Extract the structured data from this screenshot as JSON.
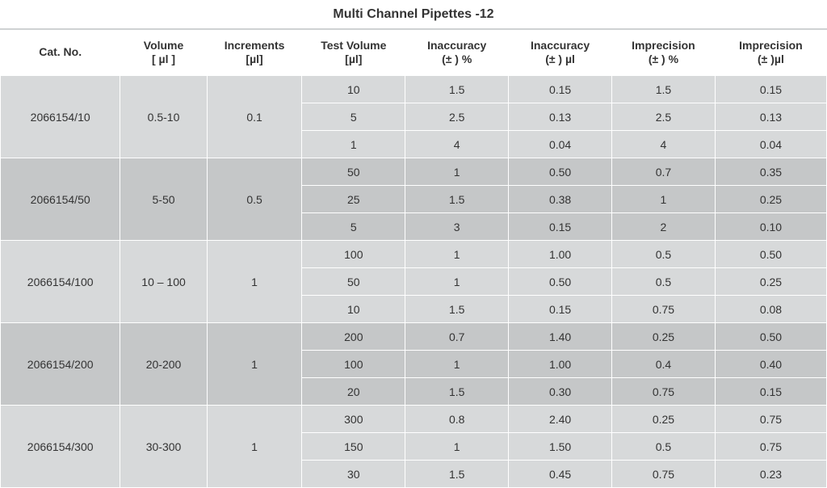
{
  "title": "Multi Channel Pipettes -12",
  "columns": [
    "Cat. No.",
    "Volume\n[ µl ]",
    "Increments\n[µl]",
    "Test Volume\n[µl]",
    "Inaccuracy\n(± ) %",
    "Inaccuracy\n(± ) µl",
    "Imprecision\n(± ) %",
    "Imprecision\n(± )µl"
  ],
  "col_widths_pct": [
    14.5,
    10.5,
    11.5,
    12.5,
    12.5,
    12.5,
    12.5,
    13.5
  ],
  "colors": {
    "band_a": "#d7d9da",
    "band_b": "#c5c7c8",
    "border": "#ffffff",
    "text": "#333333"
  },
  "font": {
    "family": "Arial",
    "size_body": 14,
    "size_title": 16
  },
  "groups": [
    {
      "cat_no": "2066154/10",
      "volume": "0.5-10",
      "increments": "0.1",
      "band": "a",
      "rows": [
        {
          "test_volume": "10",
          "inacc_pct": "1.5",
          "inacc_ul": "0.15",
          "imprec_pct": "1.5",
          "imprec_ul": "0.15"
        },
        {
          "test_volume": "5",
          "inacc_pct": "2.5",
          "inacc_ul": "0.13",
          "imprec_pct": "2.5",
          "imprec_ul": "0.13"
        },
        {
          "test_volume": "1",
          "inacc_pct": "4",
          "inacc_ul": "0.04",
          "imprec_pct": "4",
          "imprec_ul": "0.04"
        }
      ]
    },
    {
      "cat_no": "2066154/50",
      "volume": "5-50",
      "increments": "0.5",
      "band": "b",
      "rows": [
        {
          "test_volume": "50",
          "inacc_pct": "1",
          "inacc_ul": "0.50",
          "imprec_pct": "0.7",
          "imprec_ul": "0.35"
        },
        {
          "test_volume": "25",
          "inacc_pct": "1.5",
          "inacc_ul": "0.38",
          "imprec_pct": "1",
          "imprec_ul": "0.25"
        },
        {
          "test_volume": "5",
          "inacc_pct": "3",
          "inacc_ul": "0.15",
          "imprec_pct": "2",
          "imprec_ul": "0.10"
        }
      ]
    },
    {
      "cat_no": "2066154/100",
      "volume": "10 – 100",
      "increments": "1",
      "band": "a",
      "rows": [
        {
          "test_volume": "100",
          "inacc_pct": "1",
          "inacc_ul": "1.00",
          "imprec_pct": "0.5",
          "imprec_ul": "0.50"
        },
        {
          "test_volume": "50",
          "inacc_pct": "1",
          "inacc_ul": "0.50",
          "imprec_pct": "0.5",
          "imprec_ul": "0.25"
        },
        {
          "test_volume": "10",
          "inacc_pct": "1.5",
          "inacc_ul": "0.15",
          "imprec_pct": "0.75",
          "imprec_ul": "0.08"
        }
      ]
    },
    {
      "cat_no": "2066154/200",
      "volume": "20-200",
      "increments": "1",
      "band": "b",
      "rows": [
        {
          "test_volume": "200",
          "inacc_pct": "0.7",
          "inacc_ul": "1.40",
          "imprec_pct": "0.25",
          "imprec_ul": "0.50"
        },
        {
          "test_volume": "100",
          "inacc_pct": "1",
          "inacc_ul": "1.00",
          "imprec_pct": "0.4",
          "imprec_ul": "0.40"
        },
        {
          "test_volume": "20",
          "inacc_pct": "1.5",
          "inacc_ul": "0.30",
          "imprec_pct": "0.75",
          "imprec_ul": "0.15"
        }
      ]
    },
    {
      "cat_no": "2066154/300",
      "volume": "30-300",
      "increments": "1",
      "band": "a",
      "rows": [
        {
          "test_volume": "300",
          "inacc_pct": "0.8",
          "inacc_ul": "2.40",
          "imprec_pct": "0.25",
          "imprec_ul": "0.75"
        },
        {
          "test_volume": "150",
          "inacc_pct": "1",
          "inacc_ul": "1.50",
          "imprec_pct": "0.5",
          "imprec_ul": "0.75"
        },
        {
          "test_volume": "30",
          "inacc_pct": "1.5",
          "inacc_ul": "0.45",
          "imprec_pct": "0.75",
          "imprec_ul": "0.23"
        }
      ]
    }
  ]
}
